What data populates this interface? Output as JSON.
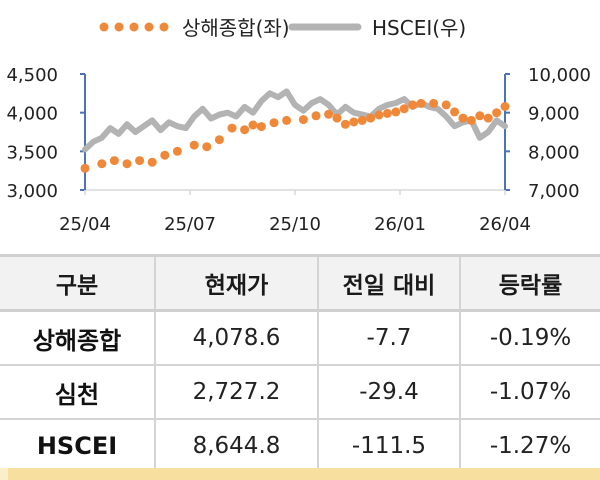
{
  "legend": {
    "series1": {
      "label": "상해종합(좌)",
      "color": "#f0883a",
      "style": "dotted"
    },
    "series2": {
      "label": "HSCEI(우)",
      "color": "#b3b3b3",
      "style": "line"
    }
  },
  "chart_data": {
    "type": "line",
    "title": "",
    "x_tick_labels": [
      "25/04",
      "25/07",
      "25/10",
      "26/01",
      "26/04"
    ],
    "left_axis": {
      "label": "상해종합",
      "ticks": [
        "3,000",
        "3,500",
        "4,000",
        "4,500"
      ],
      "range": [
        3000,
        4500
      ]
    },
    "right_axis": {
      "label": "HSCEI",
      "ticks": [
        "7,000",
        "8,000",
        "9,000",
        "10,000"
      ],
      "range": [
        7000,
        10000
      ]
    },
    "axis_color": "#4a74b5",
    "grid": false,
    "legend_position": "top",
    "series": [
      {
        "name": "상해종합(좌)",
        "axis": "left",
        "color": "#f0883a",
        "marker": "dot",
        "note": "estimated from pixel positions",
        "x": [
          0.0,
          0.04,
          0.07,
          0.1,
          0.13,
          0.16,
          0.19,
          0.22,
          0.26,
          0.29,
          0.32,
          0.35,
          0.38,
          0.4,
          0.42,
          0.45,
          0.48,
          0.52,
          0.55,
          0.58,
          0.6,
          0.62,
          0.64,
          0.66,
          0.68,
          0.7,
          0.72,
          0.74,
          0.76,
          0.78,
          0.8,
          0.83,
          0.86,
          0.88,
          0.9,
          0.92,
          0.94,
          0.96,
          0.98,
          1.0
        ],
        "values": [
          3280,
          3340,
          3380,
          3340,
          3380,
          3360,
          3450,
          3500,
          3580,
          3560,
          3650,
          3800,
          3780,
          3840,
          3820,
          3870,
          3900,
          3910,
          3960,
          3980,
          3930,
          3850,
          3880,
          3900,
          3930,
          3970,
          3990,
          4010,
          4050,
          4100,
          4120,
          4120,
          4100,
          4010,
          3930,
          3900,
          3960,
          3930,
          4000,
          4080
        ]
      },
      {
        "name": "HSCEI(우)",
        "axis": "right",
        "color": "#b3b3b3",
        "marker": "none",
        "note": "estimated from pixel positions",
        "x": [
          0.0,
          0.02,
          0.04,
          0.06,
          0.08,
          0.1,
          0.12,
          0.14,
          0.16,
          0.18,
          0.2,
          0.22,
          0.24,
          0.26,
          0.28,
          0.3,
          0.32,
          0.34,
          0.36,
          0.38,
          0.4,
          0.42,
          0.44,
          0.46,
          0.48,
          0.5,
          0.52,
          0.54,
          0.56,
          0.58,
          0.6,
          0.62,
          0.64,
          0.66,
          0.68,
          0.7,
          0.72,
          0.74,
          0.76,
          0.78,
          0.8,
          0.82,
          0.84,
          0.86,
          0.88,
          0.9,
          0.92,
          0.94,
          0.96,
          0.98,
          1.0
        ],
        "values": [
          8050,
          8250,
          8350,
          8600,
          8450,
          8700,
          8500,
          8650,
          8800,
          8550,
          8750,
          8650,
          8600,
          8900,
          9100,
          8850,
          8950,
          9000,
          8900,
          9150,
          9000,
          9300,
          9500,
          9400,
          9550,
          9200,
          9050,
          9250,
          9350,
          9200,
          8950,
          9150,
          9000,
          8950,
          8900,
          9100,
          9200,
          9250,
          9350,
          9150,
          9250,
          9150,
          9100,
          8900,
          8650,
          8750,
          8800,
          8350,
          8500,
          8800,
          8650
        ]
      }
    ]
  },
  "table": {
    "headers": [
      "구분",
      "현재가",
      "전일 대비",
      "등락률"
    ],
    "rows": [
      {
        "name": "상해종합",
        "price": "4,078.6",
        "change": "-7.7",
        "rate": "-0.19%"
      },
      {
        "name": "심천",
        "price": "2,727.2",
        "change": "-29.4",
        "rate": "-1.07%"
      },
      {
        "name": "HSCEI",
        "price": "8,644.8",
        "change": "-111.5",
        "rate": "-1.27%"
      }
    ]
  }
}
